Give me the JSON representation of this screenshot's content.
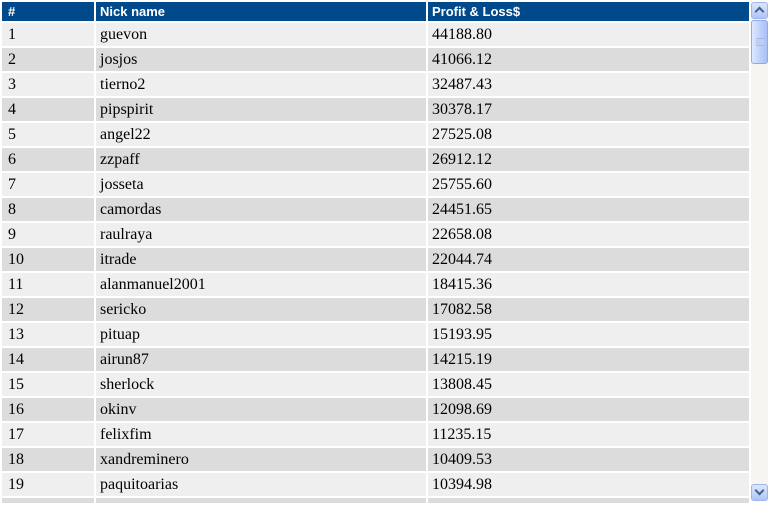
{
  "table": {
    "columns": [
      {
        "id": "rank",
        "label": "#"
      },
      {
        "id": "nick",
        "label": "Nick name"
      },
      {
        "id": "pl",
        "label": "Profit & Loss$"
      }
    ],
    "rows": [
      [
        "1",
        "guevon",
        "44188.80"
      ],
      [
        "2",
        "josjos",
        "41066.12"
      ],
      [
        "3",
        "tierno2",
        "32487.43"
      ],
      [
        "4",
        "pipspirit",
        "30378.17"
      ],
      [
        "5",
        "angel22",
        "27525.08"
      ],
      [
        "6",
        "zzpaff",
        "26912.12"
      ],
      [
        "7",
        "josseta",
        "25755.60"
      ],
      [
        "8",
        "camordas",
        "24451.65"
      ],
      [
        "9",
        "raulraya",
        "22658.08"
      ],
      [
        "10",
        "itrade",
        "22044.74"
      ],
      [
        "11",
        "alanmanuel2001",
        "18415.36"
      ],
      [
        "12",
        "sericko",
        "17082.58"
      ],
      [
        "13",
        "pituap",
        "15193.95"
      ],
      [
        "14",
        "airun87",
        "14215.19"
      ],
      [
        "15",
        "sherlock",
        "13808.45"
      ],
      [
        "16",
        "okinv",
        "12098.69"
      ],
      [
        "17",
        "felixfim",
        "11235.15"
      ],
      [
        "18",
        "xandreminero",
        "10409.53"
      ],
      [
        "19",
        "paquitoarias",
        "10394.98"
      ]
    ],
    "partial_row_visible": true
  },
  "colors": {
    "header_bg": "#004a8c",
    "header_text": "#ffffff",
    "row_odd_bg": "#efefef",
    "row_even_bg": "#dcdcdc",
    "row_text": "#000000",
    "table_gap": "#ffffff"
  },
  "scrollbar": {
    "up_icon": "chevron-up",
    "down_icon": "chevron-down",
    "thumb_icon": "grip-lines",
    "thumb_position": "top"
  }
}
